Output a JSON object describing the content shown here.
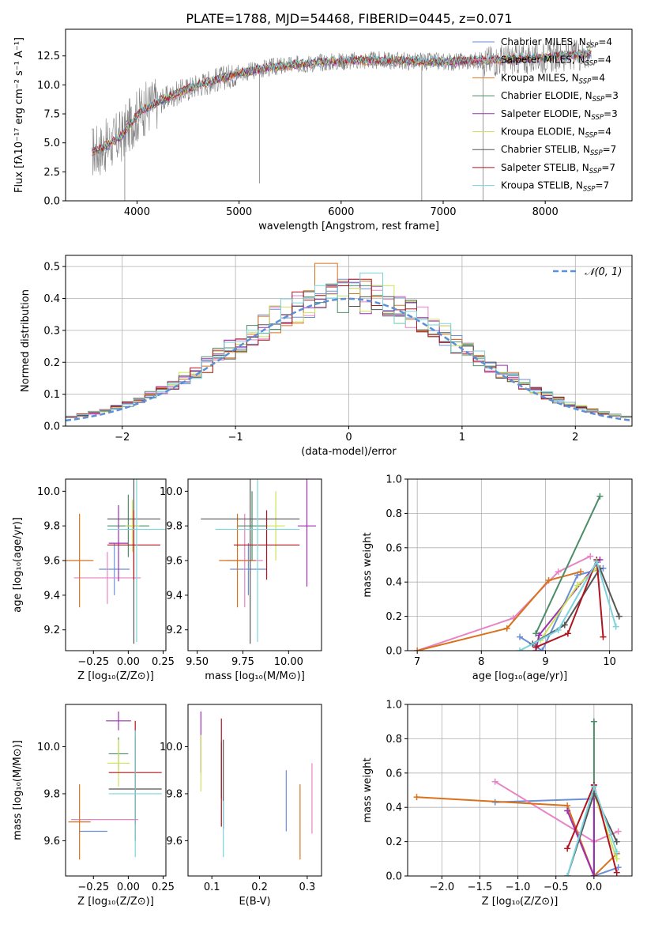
{
  "figure": {
    "title": "PLATE=1788, MJD=54468, FIBERID=0445, z=0.071"
  },
  "chart_data": [
    {
      "id": "spectrum",
      "type": "line",
      "title": "PLATE=1788, MJD=54468, FIBERID=0445, z=0.071",
      "xlabel": "wavelength [Angstrom, rest frame]",
      "ylabel": "Flux [fλ10⁻¹⁷ erg cm⁻² s⁻¹ A⁻¹]",
      "xlim": [
        3300,
        8850
      ],
      "ylim": [
        0,
        14.8
      ],
      "xticks": [
        4000,
        5000,
        6000,
        7000,
        8000
      ],
      "yticks": [
        0.0,
        2.5,
        5.0,
        7.5,
        10.0,
        12.5
      ],
      "data_color": "#808080",
      "continuum": {
        "x": [
          3550,
          3650,
          3750,
          3850,
          3950,
          4050,
          4200,
          4400,
          4600,
          4800,
          5000,
          5300,
          5600,
          5900,
          6200,
          6500,
          6800,
          7100,
          7400,
          7700,
          8000,
          8300,
          8450
        ],
        "y": [
          4.2,
          4.5,
          5.0,
          5.6,
          6.8,
          7.8,
          8.5,
          9.3,
          10.0,
          10.5,
          11.0,
          11.5,
          11.8,
          12.0,
          12.1,
          12.1,
          12.0,
          12.0,
          12.1,
          12.2,
          12.4,
          12.6,
          12.7
        ]
      },
      "legend": [
        {
          "label": "Chabrier MILES, N",
          "sub": "SSP",
          "n": "=4",
          "color": "#6a8fd6"
        },
        {
          "label": "Salpeter MILES, N",
          "sub": "SSP",
          "n": "=4",
          "color": "#e883c4"
        },
        {
          "label": "Kroupa MILES, N",
          "sub": "SSP",
          "n": "=4",
          "color": "#d8721c"
        },
        {
          "label": "Chabrier ELODIE, N",
          "sub": "SSP",
          "n": "=3",
          "color": "#4c8c67"
        },
        {
          "label": "Salpeter ELODIE, N",
          "sub": "SSP",
          "n": "=3",
          "color": "#9b2fb0"
        },
        {
          "label": "Kroupa ELODIE, N",
          "sub": "SSP",
          "n": "=4",
          "color": "#cbe35a"
        },
        {
          "label": "Chabrier STELIB, N",
          "sub": "SSP",
          "n": "=7",
          "color": "#555555"
        },
        {
          "label": "Salpeter STELIB, N",
          "sub": "SSP",
          "n": "=7",
          "color": "#b0141e"
        },
        {
          "label": "Kroupa STELIB, N",
          "sub": "SSP",
          "n": "=7",
          "color": "#7ad3dc"
        }
      ]
    },
    {
      "id": "residuals",
      "type": "histogram",
      "xlabel": "(data-model)/error",
      "ylabel": "Normed distribution",
      "xlim": [
        -2.5,
        2.5
      ],
      "ylim": [
        0,
        0.535
      ],
      "xticks": [
        -2,
        -1,
        0,
        1,
        2
      ],
      "yticks": [
        0.0,
        0.1,
        0.2,
        0.3,
        0.4,
        0.5
      ],
      "bin_width": 0.1,
      "grid": true,
      "legend": {
        "label": "𝒩(0, 1)",
        "position": "top-right",
        "color": "#5b8fd6"
      },
      "peaks": [
        0.46,
        0.45,
        0.51,
        0.44,
        0.45,
        0.44,
        0.44,
        0.46,
        0.48
      ],
      "peak_x": [
        0.0,
        0.0,
        -0.2,
        0.1,
        0.0,
        0.3,
        -0.1,
        0.1,
        0.2
      ]
    },
    {
      "id": "age-vs-Z",
      "type": "errorbar",
      "xlabel": "Z [log₁₀(Z/Z⊙)]",
      "ylabel": "age  [log₁₀(age/yr)]",
      "xlim": [
        -0.45,
        0.27
      ],
      "ylim": [
        9.08,
        10.07
      ],
      "xticks": [
        -0.25,
        0.0,
        0.25
      ],
      "yticks": [
        9.2,
        9.4,
        9.6,
        9.8,
        10.0
      ],
      "points": [
        {
          "x": -0.1,
          "xerr": 0.11,
          "y": 9.55,
          "yerr": 0.15
        },
        {
          "x": -0.15,
          "xerr": 0.24,
          "y": 9.5,
          "yerr": 0.15
        },
        {
          "x": -0.35,
          "xerr": 0.1,
          "y": 9.6,
          "yerr": 0.27
        },
        {
          "x": 0.0,
          "xerr": 0.15,
          "y": 9.8,
          "yerr": 0.18
        },
        {
          "x": -0.07,
          "xerr": 0.07,
          "y": 9.7,
          "yerr": 0.22
        },
        {
          "x": 0.03,
          "xerr": 0.05,
          "y": 9.8,
          "yerr": 0.15
        },
        {
          "x": 0.04,
          "xerr": 0.19,
          "y": 9.84,
          "yerr": 0.72
        },
        {
          "x": 0.04,
          "xerr": 0.19,
          "y": 9.69,
          "yerr": 0.2
        },
        {
          "x": 0.06,
          "xerr": 0.21,
          "y": 9.78,
          "yerr": 0.65
        }
      ]
    },
    {
      "id": "age-vs-mass",
      "type": "errorbar",
      "xlabel": "mass [log₁₀(M/M⊙)]",
      "xlim": [
        9.45,
        10.18
      ],
      "ylim": [
        9.08,
        10.07
      ],
      "xticks": [
        9.5,
        9.75,
        10.0
      ],
      "xticklabels": [
        "9.50",
        "9.75",
        "10.00"
      ],
      "yticks": [
        9.2,
        9.4,
        9.6,
        9.8,
        10.0
      ],
      "points": [
        {
          "x": 9.78,
          "xerr": 0.1,
          "y": 9.55,
          "yerr": 0.15
        },
        {
          "x": 9.76,
          "xerr": 0.1,
          "y": 9.6,
          "yerr": 0.27
        },
        {
          "x": 9.72,
          "xerr": 0.1,
          "y": 9.6,
          "yerr": 0.27
        },
        {
          "x": 9.8,
          "xerr": 0.08,
          "y": 9.8,
          "yerr": 0.2
        },
        {
          "x": 10.1,
          "xerr": 0.05,
          "y": 9.8,
          "yerr": 0.35
        },
        {
          "x": 9.93,
          "xerr": 0.05,
          "y": 9.8,
          "yerr": 0.2
        },
        {
          "x": 9.79,
          "xerr": 0.27,
          "y": 9.84,
          "yerr": 0.72
        },
        {
          "x": 9.88,
          "xerr": 0.18,
          "y": 9.69,
          "yerr": 0.2
        },
        {
          "x": 9.83,
          "xerr": 0.23,
          "y": 9.78,
          "yerr": 0.65
        }
      ]
    },
    {
      "id": "weight-vs-age",
      "type": "line",
      "xlabel": "age  [log₁₀(age/yr)]",
      "ylabel": "mass weight",
      "xlim": [
        6.85,
        10.35
      ],
      "ylim": [
        0,
        1.0
      ],
      "xticks": [
        7,
        8,
        9,
        10
      ],
      "yticks": [
        0.0,
        0.2,
        0.4,
        0.6,
        0.8,
        1.0
      ],
      "grid": true,
      "series": [
        {
          "x": [
            8.6,
            8.95,
            9.5,
            9.9
          ],
          "y": [
            0.08,
            0.0,
            0.44,
            0.48
          ]
        },
        {
          "x": [
            7.0,
            8.5,
            9.2,
            9.7
          ],
          "y": [
            0.0,
            0.19,
            0.46,
            0.55
          ]
        },
        {
          "x": [
            7.0,
            8.4,
            9.05,
            9.55
          ],
          "y": [
            0.0,
            0.13,
            0.41,
            0.46
          ]
        },
        {
          "x": [
            8.85,
            9.85
          ],
          "y": [
            0.1,
            0.9
          ]
        },
        {
          "x": [
            8.85,
            8.9,
            9.85
          ],
          "y": [
            0.0,
            0.09,
            0.53
          ]
        },
        {
          "x": [
            8.92,
            9.5,
            9.8
          ],
          "y": [
            0.06,
            0.38,
            0.48
          ]
        },
        {
          "x": [
            8.8,
            9.3,
            9.85,
            10.15
          ],
          "y": [
            0.04,
            0.15,
            0.48,
            0.2
          ]
        },
        {
          "x": [
            8.85,
            9.35,
            9.8,
            9.9
          ],
          "y": [
            0.02,
            0.1,
            0.53,
            0.08
          ]
        },
        {
          "x": [
            8.6,
            9.2,
            9.8,
            10.1
          ],
          "y": [
            0.0,
            0.12,
            0.52,
            0.14
          ]
        }
      ]
    },
    {
      "id": "mass-vs-Z",
      "type": "errorbar",
      "xlabel": "Z [log₁₀(Z/Z⊙)]",
      "ylabel": "mass [log₁₀(M/M⊙)]",
      "xlim": [
        -0.45,
        0.27
      ],
      "ylim": [
        9.45,
        10.18
      ],
      "xticks": [
        -0.25,
        0.0,
        0.25
      ],
      "yticks": [
        9.6,
        9.8,
        10.0
      ],
      "points": [
        {
          "x": -0.25,
          "xerr": 0.1,
          "y": 9.64,
          "yerr": 0.0
        },
        {
          "x": -0.17,
          "xerr": 0.24,
          "y": 9.69,
          "yerr": 0.0
        },
        {
          "x": -0.35,
          "xerr": 0.08,
          "y": 9.68,
          "yerr": 0.16
        },
        {
          "x": -0.07,
          "xerr": 0.07,
          "y": 9.97,
          "yerr": 0.07
        },
        {
          "x": -0.07,
          "xerr": 0.09,
          "y": 10.11,
          "yerr": 0.04
        },
        {
          "x": -0.07,
          "xerr": 0.08,
          "y": 9.93,
          "yerr": 0.1
        },
        {
          "x": 0.05,
          "xerr": 0.19,
          "y": 9.82,
          "yerr": 0.22
        },
        {
          "x": 0.05,
          "xerr": 0.19,
          "y": 9.89,
          "yerr": 0.22
        },
        {
          "x": 0.05,
          "xerr": 0.19,
          "y": 9.8,
          "yerr": 0.27
        }
      ]
    },
    {
      "id": "mass-vs-ebv",
      "type": "errorbar",
      "xlabel": "E(B-V)",
      "xlim": [
        0.05,
        0.33
      ],
      "ylim": [
        9.45,
        10.18
      ],
      "xticks": [
        0.1,
        0.2,
        0.3
      ],
      "yticks": [
        9.6,
        9.8,
        10.0
      ],
      "points": [
        {
          "x": 0.256,
          "y": 9.77,
          "yerr": 0.13
        },
        {
          "x": 0.31,
          "y": 9.78,
          "yerr": 0.15
        },
        {
          "x": 0.285,
          "y": 9.68,
          "yerr": 0.16
        },
        {
          "x": 0.12,
          "y": 9.9,
          "yerr": 0.12
        },
        {
          "x": 0.077,
          "y": 10.02,
          "yerr": 0.13
        },
        {
          "x": 0.077,
          "y": 9.93,
          "yerr": 0.12
        },
        {
          "x": 0.124,
          "y": 9.84,
          "yerr": 0.19
        },
        {
          "x": 0.12,
          "y": 9.89,
          "yerr": 0.23
        },
        {
          "x": 0.124,
          "y": 9.65,
          "yerr": 0.12
        }
      ]
    },
    {
      "id": "weight-vs-Z",
      "type": "line",
      "xlabel": "Z [log₁₀(Z/Z⊙)]",
      "ylabel": "mass weight",
      "xlim": [
        -2.45,
        0.5
      ],
      "ylim": [
        0,
        1.0
      ],
      "xticks": [
        -2.0,
        -1.5,
        -1.0,
        -0.5,
        0.0
      ],
      "yticks": [
        0.0,
        0.2,
        0.4,
        0.6,
        0.8,
        1.0
      ],
      "grid": true,
      "series": [
        {
          "x": [
            -1.3,
            0.0,
            0.0,
            0.32
          ],
          "y": [
            0.43,
            0.45,
            0.0,
            0.05
          ]
        },
        {
          "x": [
            -1.3,
            0.0,
            0.32
          ],
          "y": [
            0.55,
            0.2,
            0.26
          ]
        },
        {
          "x": [
            -2.33,
            -0.35,
            0.0,
            0.3
          ],
          "y": [
            0.46,
            0.41,
            0.0,
            0.13
          ]
        },
        {
          "x": [
            0.0,
            0.0
          ],
          "y": [
            0.9,
            0.0
          ]
        },
        {
          "x": [
            -0.35,
            0.0,
            0.0
          ],
          "y": [
            0.38,
            0.0,
            0.53
          ]
        },
        {
          "x": [
            0.0,
            0.3
          ],
          "y": [
            0.48,
            0.1
          ]
        },
        {
          "x": [
            -0.35,
            0.0,
            0.3
          ],
          "y": [
            0.0,
            0.48,
            0.2
          ]
        },
        {
          "x": [
            -0.35,
            0.0,
            0.3
          ],
          "y": [
            0.16,
            0.53,
            0.02
          ]
        },
        {
          "x": [
            -0.35,
            0.0,
            0.3
          ],
          "y": [
            0.0,
            0.52,
            0.14
          ]
        }
      ]
    }
  ]
}
